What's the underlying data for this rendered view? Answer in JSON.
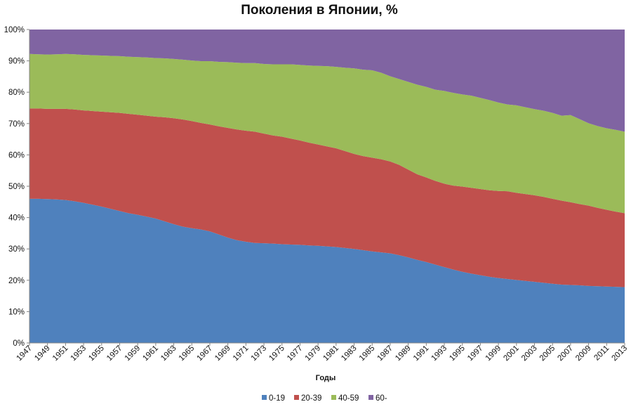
{
  "chart_data": {
    "type": "area",
    "stacked": true,
    "percent": true,
    "title": "Поколения в Японии, %",
    "xlabel": "Годы",
    "ylabel": "",
    "ylim": [
      0,
      100
    ],
    "y_ticks": [
      "0%",
      "10%",
      "20%",
      "30%",
      "40%",
      "50%",
      "60%",
      "70%",
      "80%",
      "90%",
      "100%"
    ],
    "x": [
      1947,
      1948,
      1949,
      1950,
      1951,
      1952,
      1953,
      1954,
      1955,
      1956,
      1957,
      1958,
      1959,
      1960,
      1961,
      1962,
      1963,
      1964,
      1965,
      1966,
      1967,
      1968,
      1969,
      1970,
      1971,
      1972,
      1973,
      1974,
      1975,
      1976,
      1977,
      1978,
      1979,
      1980,
      1981,
      1982,
      1983,
      1984,
      1985,
      1986,
      1987,
      1988,
      1989,
      1990,
      1991,
      1992,
      1993,
      1994,
      1995,
      1996,
      1997,
      1998,
      1999,
      2000,
      2001,
      2002,
      2003,
      2004,
      2005,
      2006,
      2007,
      2008,
      2009,
      2010,
      2011,
      2012,
      2013
    ],
    "x_tick_labels": [
      "1947",
      "1949",
      "1951",
      "1953",
      "1955",
      "1957",
      "1959",
      "1961",
      "1963",
      "1965",
      "1967",
      "1969",
      "1971",
      "1973",
      "1975",
      "1977",
      "1979",
      "1981",
      "1983",
      "1985",
      "1987",
      "1989",
      "1991",
      "1993",
      "1995",
      "1997",
      "1999",
      "2001",
      "2003",
      "2005",
      "2007",
      "2009",
      "2011",
      "2013"
    ],
    "grid": false,
    "legend_position": "bottom",
    "series": [
      {
        "name": "0-19",
        "color": "#4f81bd",
        "values": [
          46.0,
          46.0,
          45.9,
          45.8,
          45.6,
          45.2,
          44.7,
          44.1,
          43.5,
          42.8,
          42.1,
          41.4,
          40.9,
          40.3,
          39.7,
          38.8,
          37.9,
          37.1,
          36.6,
          36.2,
          35.6,
          34.6,
          33.6,
          32.8,
          32.3,
          31.9,
          31.8,
          31.7,
          31.5,
          31.4,
          31.3,
          31.1,
          31.0,
          30.8,
          30.6,
          30.3,
          30.0,
          29.6,
          29.2,
          28.9,
          28.6,
          28.0,
          27.3,
          26.5,
          25.8,
          25.0,
          24.2,
          23.4,
          22.7,
          22.1,
          21.6,
          21.1,
          20.7,
          20.4,
          20.1,
          19.8,
          19.5,
          19.2,
          18.9,
          18.6,
          18.5,
          18.4,
          18.2,
          18.1,
          18.0,
          17.9,
          17.8
        ]
      },
      {
        "name": "20-39",
        "color": "#c0504d",
        "values": [
          28.8,
          28.8,
          28.8,
          28.9,
          29.1,
          29.3,
          29.5,
          29.9,
          30.3,
          30.8,
          31.3,
          31.7,
          31.9,
          32.2,
          32.5,
          33.2,
          33.8,
          34.2,
          34.2,
          34.0,
          34.1,
          34.5,
          35.0,
          35.3,
          35.4,
          35.5,
          35.0,
          34.5,
          34.3,
          33.8,
          33.3,
          32.8,
          32.3,
          31.9,
          31.5,
          30.9,
          30.3,
          30.0,
          29.9,
          29.7,
          29.3,
          28.8,
          28.0,
          27.3,
          27.0,
          26.7,
          26.6,
          26.8,
          27.2,
          27.4,
          27.5,
          27.6,
          27.8,
          28.0,
          27.8,
          27.7,
          27.6,
          27.4,
          27.1,
          26.8,
          26.4,
          25.9,
          25.6,
          25.0,
          24.5,
          24.0,
          23.6
        ]
      },
      {
        "name": "40-59",
        "color": "#9bbb59",
        "values": [
          17.4,
          17.3,
          17.3,
          17.4,
          17.5,
          17.6,
          17.7,
          17.8,
          17.9,
          18.0,
          18.1,
          18.2,
          18.4,
          18.6,
          18.7,
          18.8,
          18.9,
          19.1,
          19.3,
          19.7,
          20.2,
          20.6,
          21.0,
          21.3,
          21.6,
          21.9,
          22.2,
          22.7,
          23.1,
          23.7,
          24.1,
          24.6,
          25.1,
          25.6,
          26.0,
          26.6,
          27.3,
          27.6,
          27.9,
          27.6,
          27.2,
          27.4,
          28.0,
          28.6,
          28.9,
          29.1,
          29.6,
          29.6,
          29.4,
          29.4,
          29.1,
          28.8,
          28.2,
          27.7,
          27.9,
          27.7,
          27.5,
          27.5,
          27.4,
          27.1,
          27.8,
          27.1,
          26.3,
          26.1,
          26.0,
          26.1,
          26.0
        ]
      },
      {
        "name": "60-",
        "color": "#8064a2",
        "values": [
          7.8,
          7.9,
          8.0,
          7.9,
          7.8,
          7.9,
          8.1,
          8.2,
          8.3,
          8.4,
          8.5,
          8.7,
          8.8,
          8.9,
          9.1,
          9.2,
          9.4,
          9.6,
          9.9,
          10.1,
          10.1,
          10.3,
          10.4,
          10.6,
          10.7,
          10.7,
          11.0,
          11.1,
          11.1,
          11.1,
          11.3,
          11.5,
          11.6,
          11.7,
          11.9,
          12.2,
          12.4,
          12.8,
          13.0,
          13.8,
          14.9,
          15.8,
          16.7,
          17.6,
          18.3,
          19.2,
          19.6,
          20.2,
          20.7,
          21.1,
          21.8,
          22.5,
          23.3,
          23.9,
          24.2,
          24.8,
          25.4,
          25.9,
          26.6,
          27.5,
          27.3,
          28.6,
          29.9,
          30.8,
          31.5,
          32.0,
          32.6
        ]
      }
    ]
  }
}
